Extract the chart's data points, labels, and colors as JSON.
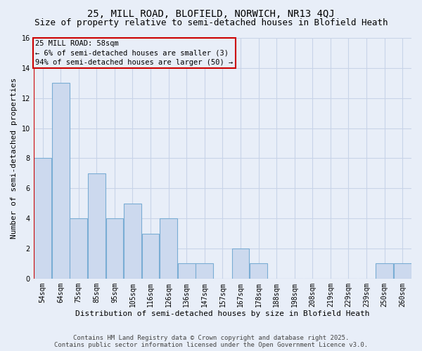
{
  "title": "25, MILL ROAD, BLOFIELD, NORWICH, NR13 4QJ",
  "subtitle": "Size of property relative to semi-detached houses in Blofield Heath",
  "xlabel": "Distribution of semi-detached houses by size in Blofield Heath",
  "ylabel": "Number of semi-detached properties",
  "categories": [
    "54sqm",
    "64sqm",
    "75sqm",
    "85sqm",
    "95sqm",
    "105sqm",
    "116sqm",
    "126sqm",
    "136sqm",
    "147sqm",
    "157sqm",
    "167sqm",
    "178sqm",
    "188sqm",
    "198sqm",
    "208sqm",
    "219sqm",
    "229sqm",
    "239sqm",
    "250sqm",
    "260sqm"
  ],
  "values": [
    8,
    13,
    4,
    7,
    4,
    5,
    3,
    4,
    1,
    1,
    0,
    2,
    1,
    0,
    0,
    0,
    0,
    0,
    0,
    1,
    1
  ],
  "bar_color": "#ccd9ee",
  "bar_edge_color": "#7aadd4",
  "marker_line_color": "#cc0000",
  "marker_index": 0,
  "annotation_text_line1": "25 MILL ROAD: 58sqm",
  "annotation_text_line2": "← 6% of semi-detached houses are smaller (3)",
  "annotation_text_line3": "94% of semi-detached houses are larger (50) →",
  "annotation_box_color": "#cc0000",
  "ylim": [
    0,
    16
  ],
  "yticks": [
    0,
    2,
    4,
    6,
    8,
    10,
    12,
    14,
    16
  ],
  "grid_color": "#c8d4e8",
  "plot_bg_color": "#e8eef8",
  "fig_bg_color": "#e8eef8",
  "footer_text": "Contains HM Land Registry data © Crown copyright and database right 2025.\nContains public sector information licensed under the Open Government Licence v3.0.",
  "title_fontsize": 10,
  "subtitle_fontsize": 9,
  "annotation_fontsize": 7.5,
  "footer_fontsize": 6.5,
  "xlabel_fontsize": 8,
  "ylabel_fontsize": 8,
  "tick_fontsize": 7
}
